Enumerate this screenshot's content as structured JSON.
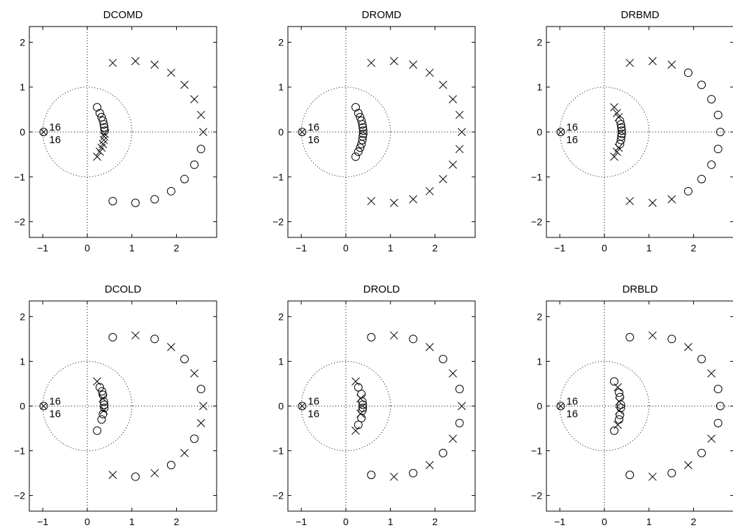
{
  "chart_data": [
    {
      "type": "scatter",
      "title": "DCOMD",
      "xlim": [
        -1.3,
        2.9
      ],
      "ylim": [
        -2.35,
        2.35
      ],
      "xticks": [
        "−1",
        "0",
        "1",
        "2"
      ],
      "yticks": [
        "2",
        "1",
        "0",
        "−1",
        "−2"
      ],
      "grid": false,
      "unit_circle": true,
      "axes_lines": true,
      "multiplicity_labels": [
        "16",
        "16"
      ],
      "multiplicity_point": [
        -0.98,
        0.0
      ],
      "series": [
        {
          "marker": "x",
          "points": [
            [
              0.57,
              1.54
            ],
            [
              1.08,
              1.58
            ],
            [
              1.51,
              1.5
            ],
            [
              1.88,
              1.32
            ],
            [
              2.18,
              1.05
            ],
            [
              2.4,
              0.73
            ],
            [
              2.55,
              0.38
            ],
            [
              2.6,
              0.0
            ],
            [
              0.22,
              -0.55
            ],
            [
              0.28,
              -0.44
            ],
            [
              0.32,
              -0.35
            ],
            [
              0.35,
              -0.27
            ],
            [
              0.37,
              -0.18
            ],
            [
              0.38,
              -0.1
            ],
            [
              0.39,
              -0.04
            ]
          ]
        },
        {
          "marker": "o",
          "points": [
            [
              0.22,
              0.55
            ],
            [
              0.28,
              0.42
            ],
            [
              0.32,
              0.33
            ],
            [
              0.35,
              0.25
            ],
            [
              0.37,
              0.17
            ],
            [
              0.38,
              0.1
            ],
            [
              0.39,
              0.03
            ],
            [
              0.57,
              -1.54
            ],
            [
              1.08,
              -1.58
            ],
            [
              1.51,
              -1.5
            ],
            [
              1.88,
              -1.32
            ],
            [
              2.18,
              -1.05
            ],
            [
              2.4,
              -0.73
            ],
            [
              2.55,
              -0.38
            ]
          ]
        }
      ]
    },
    {
      "type": "scatter",
      "title": "DROMD",
      "xlim": [
        -1.3,
        2.9
      ],
      "ylim": [
        -2.35,
        2.35
      ],
      "xticks": [
        "−1",
        "0",
        "1",
        "2"
      ],
      "yticks": [
        "2",
        "1",
        "0",
        "−1",
        "−2"
      ],
      "grid": false,
      "unit_circle": true,
      "axes_lines": true,
      "multiplicity_labels": [
        "16",
        "16"
      ],
      "multiplicity_point": [
        -0.98,
        0.0
      ],
      "series": [
        {
          "marker": "x",
          "points": [
            [
              0.57,
              1.54
            ],
            [
              1.08,
              1.58
            ],
            [
              1.51,
              1.5
            ],
            [
              1.88,
              1.32
            ],
            [
              2.18,
              1.05
            ],
            [
              2.4,
              0.73
            ],
            [
              2.55,
              0.38
            ],
            [
              2.6,
              0.0
            ],
            [
              2.55,
              -0.38
            ],
            [
              2.4,
              -0.73
            ],
            [
              2.18,
              -1.05
            ],
            [
              1.88,
              -1.32
            ],
            [
              1.51,
              -1.5
            ],
            [
              1.08,
              -1.58
            ],
            [
              0.57,
              -1.54
            ]
          ]
        },
        {
          "marker": "o",
          "points": [
            [
              0.22,
              0.55
            ],
            [
              0.28,
              0.42
            ],
            [
              0.32,
              0.33
            ],
            [
              0.35,
              0.25
            ],
            [
              0.37,
              0.17
            ],
            [
              0.38,
              0.1
            ],
            [
              0.39,
              0.03
            ],
            [
              0.39,
              -0.04
            ],
            [
              0.38,
              -0.1
            ],
            [
              0.37,
              -0.18
            ],
            [
              0.35,
              -0.27
            ],
            [
              0.32,
              -0.35
            ],
            [
              0.28,
              -0.44
            ],
            [
              0.22,
              -0.55
            ]
          ]
        }
      ]
    },
    {
      "type": "scatter",
      "title": "DRBMD",
      "xlim": [
        -1.3,
        2.9
      ],
      "ylim": [
        -2.35,
        2.35
      ],
      "xticks": [
        "−1",
        "0",
        "1",
        "2"
      ],
      "yticks": [
        "2",
        "1",
        "0",
        "−1",
        "−2"
      ],
      "grid": false,
      "unit_circle": true,
      "axes_lines": true,
      "multiplicity_labels": [
        "16",
        "16"
      ],
      "multiplicity_point": [
        -0.98,
        0.0
      ],
      "series": [
        {
          "marker": "x",
          "points": [
            [
              0.57,
              1.54
            ],
            [
              1.08,
              1.58
            ],
            [
              1.51,
              1.5
            ],
            [
              0.57,
              -1.54
            ],
            [
              1.08,
              -1.58
            ],
            [
              1.51,
              -1.5
            ],
            [
              0.22,
              0.55
            ],
            [
              0.28,
              0.42
            ],
            [
              0.32,
              0.33
            ],
            [
              0.22,
              -0.55
            ],
            [
              0.28,
              -0.44
            ],
            [
              0.32,
              -0.35
            ]
          ]
        },
        {
          "marker": "o",
          "points": [
            [
              1.88,
              1.32
            ],
            [
              2.18,
              1.05
            ],
            [
              2.4,
              0.73
            ],
            [
              2.55,
              0.38
            ],
            [
              2.6,
              0.0
            ],
            [
              2.55,
              -0.38
            ],
            [
              2.4,
              -0.73
            ],
            [
              2.18,
              -1.05
            ],
            [
              1.88,
              -1.32
            ],
            [
              0.35,
              0.25
            ],
            [
              0.37,
              0.17
            ],
            [
              0.38,
              0.1
            ],
            [
              0.39,
              0.03
            ],
            [
              0.39,
              -0.04
            ],
            [
              0.38,
              -0.1
            ],
            [
              0.37,
              -0.18
            ],
            [
              0.35,
              -0.27
            ]
          ]
        }
      ]
    },
    {
      "type": "scatter",
      "title": "DCOLD",
      "xlim": [
        -1.3,
        2.9
      ],
      "ylim": [
        -2.35,
        2.35
      ],
      "xticks": [
        "−1",
        "0",
        "1",
        "2"
      ],
      "yticks": [
        "2",
        "1",
        "0",
        "−1",
        "−2"
      ],
      "grid": false,
      "unit_circle": true,
      "axes_lines": true,
      "multiplicity_labels": [
        "16",
        "16"
      ],
      "multiplicity_point": [
        -0.98,
        0.0
      ],
      "series": [
        {
          "marker": "x",
          "points": [
            [
              1.08,
              1.58
            ],
            [
              1.88,
              1.32
            ],
            [
              2.4,
              0.73
            ],
            [
              2.6,
              0.0
            ],
            [
              2.55,
              -0.38
            ],
            [
              2.18,
              -1.05
            ],
            [
              1.51,
              -1.5
            ],
            [
              0.57,
              -1.54
            ],
            [
              0.22,
              0.55
            ],
            [
              0.35,
              0.17
            ],
            [
              0.37,
              -0.1
            ]
          ]
        },
        {
          "marker": "o",
          "points": [
            [
              0.57,
              1.54
            ],
            [
              1.51,
              1.5
            ],
            [
              2.18,
              1.05
            ],
            [
              2.55,
              0.38
            ],
            [
              2.4,
              -0.73
            ],
            [
              1.88,
              -1.32
            ],
            [
              1.08,
              -1.58
            ],
            [
              0.28,
              0.42
            ],
            [
              0.33,
              0.33
            ],
            [
              0.35,
              0.25
            ],
            [
              0.37,
              0.1
            ],
            [
              0.38,
              0.03
            ],
            [
              0.38,
              -0.04
            ],
            [
              0.35,
              -0.18
            ],
            [
              0.32,
              -0.3
            ],
            [
              0.22,
              -0.55
            ]
          ]
        }
      ]
    },
    {
      "type": "scatter",
      "title": "DROLD",
      "xlim": [
        -1.3,
        2.9
      ],
      "ylim": [
        -2.35,
        2.35
      ],
      "xticks": [
        "−1",
        "0",
        "1",
        "2"
      ],
      "yticks": [
        "2",
        "1",
        "0",
        "−1",
        "−2"
      ],
      "grid": false,
      "unit_circle": true,
      "axes_lines": true,
      "multiplicity_labels": [
        "16",
        "16"
      ],
      "multiplicity_point": [
        -0.98,
        0.0
      ],
      "series": [
        {
          "marker": "x",
          "points": [
            [
              1.08,
              1.58
            ],
            [
              1.88,
              1.32
            ],
            [
              2.4,
              0.73
            ],
            [
              2.6,
              0.0
            ],
            [
              2.4,
              -0.73
            ],
            [
              1.88,
              -1.32
            ],
            [
              1.08,
              -1.58
            ],
            [
              0.22,
              0.55
            ],
            [
              0.22,
              -0.55
            ],
            [
              0.33,
              0.17
            ],
            [
              0.33,
              -0.17
            ]
          ]
        },
        {
          "marker": "o",
          "points": [
            [
              0.57,
              1.54
            ],
            [
              1.51,
              1.5
            ],
            [
              2.18,
              1.05
            ],
            [
              2.55,
              0.38
            ],
            [
              2.55,
              -0.38
            ],
            [
              2.18,
              -1.05
            ],
            [
              1.51,
              -1.5
            ],
            [
              0.57,
              -1.54
            ],
            [
              0.28,
              0.42
            ],
            [
              0.35,
              0.27
            ],
            [
              0.37,
              0.1
            ],
            [
              0.38,
              0.03
            ],
            [
              0.38,
              -0.04
            ],
            [
              0.37,
              -0.1
            ],
            [
              0.35,
              -0.27
            ],
            [
              0.28,
              -0.42
            ]
          ]
        }
      ]
    },
    {
      "type": "scatter",
      "title": "DRBLD",
      "xlim": [
        -1.3,
        2.9
      ],
      "ylim": [
        -2.35,
        2.35
      ],
      "xticks": [
        "−1",
        "0",
        "1",
        "2"
      ],
      "yticks": [
        "2",
        "1",
        "0",
        "−1",
        "−2"
      ],
      "grid": false,
      "unit_circle": true,
      "axes_lines": true,
      "multiplicity_labels": [
        "16",
        "16"
      ],
      "multiplicity_point": [
        -0.98,
        0.0
      ],
      "series": [
        {
          "marker": "x",
          "points": [
            [
              1.08,
              1.58
            ],
            [
              1.88,
              1.32
            ],
            [
              2.4,
              0.73
            ],
            [
              2.4,
              -0.73
            ],
            [
              1.88,
              -1.32
            ],
            [
              1.08,
              -1.58
            ],
            [
              0.3,
              0.42
            ],
            [
              0.3,
              -0.42
            ],
            [
              0.33,
              0.1
            ],
            [
              0.33,
              -0.1
            ]
          ]
        },
        {
          "marker": "o",
          "points": [
            [
              0.57,
              1.54
            ],
            [
              1.51,
              1.5
            ],
            [
              2.18,
              1.05
            ],
            [
              2.55,
              0.38
            ],
            [
              2.6,
              0.0
            ],
            [
              2.55,
              -0.38
            ],
            [
              2.18,
              -1.05
            ],
            [
              1.51,
              -1.5
            ],
            [
              0.57,
              -1.54
            ],
            [
              0.22,
              0.55
            ],
            [
              0.22,
              -0.55
            ],
            [
              0.33,
              0.3
            ],
            [
              0.35,
              0.2
            ],
            [
              0.37,
              0.03
            ],
            [
              0.37,
              -0.04
            ],
            [
              0.35,
              -0.2
            ],
            [
              0.33,
              -0.3
            ]
          ]
        }
      ]
    }
  ]
}
